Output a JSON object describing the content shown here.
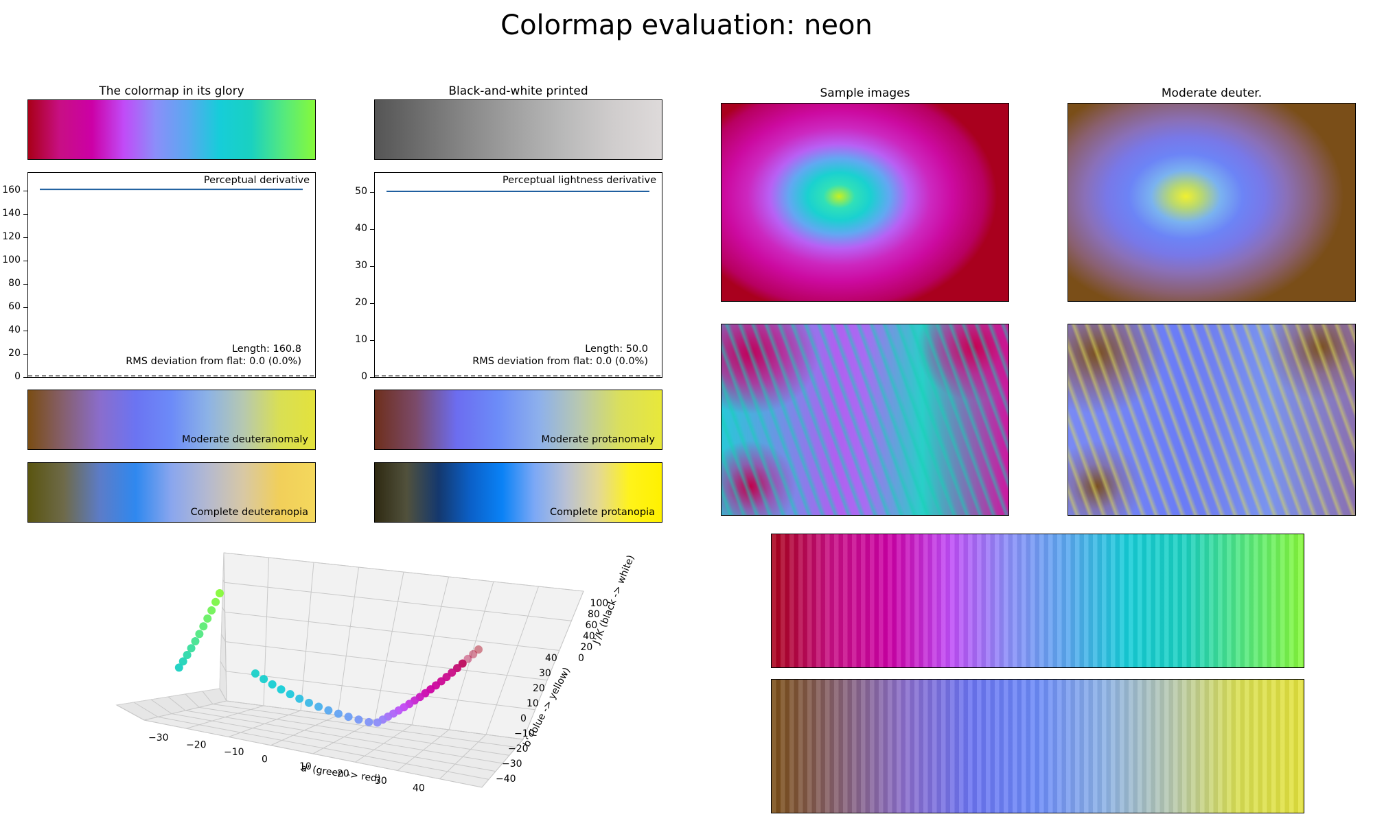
{
  "figure": {
    "title": "Colormap evaluation: neon"
  },
  "colors": {
    "glory": [
      "#a90018",
      "#c80f84",
      "#cc00a6",
      "#c14bf7",
      "#8b8ef9",
      "#5aa8f0",
      "#16cdd9",
      "#1ad1c0",
      "#54e97f",
      "#86f93a"
    ],
    "bw": [
      "#555555",
      "#6f6f6f",
      "#8a8a8a",
      "#a3a3a3",
      "#bababa",
      "#d0cdcd",
      "#dedada"
    ],
    "deut": [
      "#7a4d13",
      "#866070",
      "#8a6dcc",
      "#6b74f2",
      "#6c8bf8",
      "#8cb2e6",
      "#b6c8b0",
      "#d9df54",
      "#e3e23c"
    ],
    "prot": [
      "#6e2f1c",
      "#7b4a6a",
      "#6c6df0",
      "#6c8cf8",
      "#8db0ec",
      "#b8c8b0",
      "#dbe05a",
      "#e8e83a"
    ],
    "deutc": [
      "#5a5510",
      "#6e6a4a",
      "#5c7cc8",
      "#2f88ef",
      "#8aa6ee",
      "#b4b9d0",
      "#d8c8a4",
      "#f1cf5a",
      "#f4d85c"
    ],
    "protc": [
      "#2f2a12",
      "#51513c",
      "#14386e",
      "#0b60c8",
      "#0a82f6",
      "#7ba8f6",
      "#b9c1d4",
      "#e3d896",
      "#fff31a",
      "#fff100"
    ],
    "line": "#1f5f9f",
    "pane_bg": "#f2f2f2"
  },
  "panels": {
    "glory_title": "The colormap in its glory",
    "bw_title": "Black-and-white printed",
    "samples_title": "Sample images",
    "deuter_title": "Moderate deuter.",
    "perc_label": "Perceptual derivative",
    "light_label": "Perceptual lightness derivative",
    "perc_length": "Length: 160.8",
    "perc_rms": "RMS deviation from flat: 0.0 (0.0%)",
    "light_length": "Length: 50.0",
    "light_rms": "RMS deviation from flat: 0.0 (0.0%)",
    "deut_label": "Moderate deuteranomaly",
    "prot_label": "Moderate protanomaly",
    "deutc_label": "Complete deuteranopia",
    "protc_label": "Complete protanopia"
  },
  "axis3d": {
    "xlabel": "a' (green -> red)",
    "ylabel": "b' (blue -> yellow)",
    "zlabel": "J'/K (black -> white)",
    "xticks": [
      "−30",
      "−20",
      "−10",
      "0",
      "10",
      "20",
      "30",
      "40"
    ],
    "yticks": [
      "−40",
      "−30",
      "−20",
      "−10",
      "0",
      "10",
      "20",
      "30",
      "40"
    ],
    "zticks": [
      "0",
      "20",
      "40",
      "60",
      "80",
      "100"
    ]
  },
  "chart_data": [
    {
      "type": "line",
      "name": "perceptual_derivative",
      "title": "",
      "annotation": "Perceptual derivative",
      "x": [
        0,
        1
      ],
      "y": [
        160.8,
        160.8
      ],
      "ylim": [
        0,
        175
      ],
      "yticks": [
        0,
        20,
        40,
        60,
        80,
        100,
        120,
        140,
        160
      ],
      "length": 160.8,
      "rms_deviation": 0.0
    },
    {
      "type": "line",
      "name": "perceptual_lightness_derivative",
      "title": "",
      "annotation": "Perceptual lightness derivative",
      "x": [
        0,
        1
      ],
      "y": [
        50.0,
        50.0
      ],
      "ylim": [
        0,
        55
      ],
      "yticks": [
        0,
        10,
        20,
        30,
        40,
        50
      ],
      "length": 50.0,
      "rms_deviation": 0.0
    }
  ]
}
